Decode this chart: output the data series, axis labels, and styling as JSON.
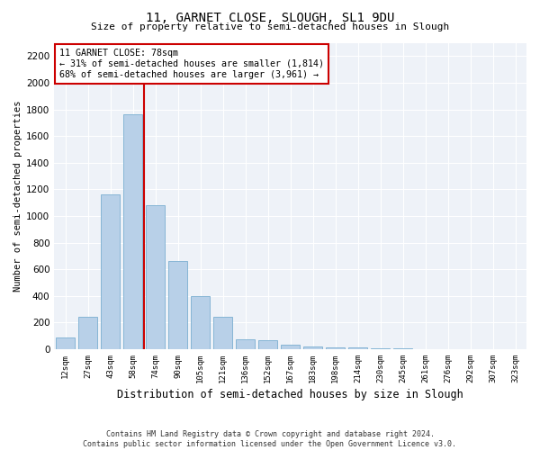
{
  "title": "11, GARNET CLOSE, SLOUGH, SL1 9DU",
  "subtitle": "Size of property relative to semi-detached houses in Slough",
  "xlabel": "Distribution of semi-detached houses by size in Slough",
  "ylabel": "Number of semi-detached properties",
  "categories": [
    "12sqm",
    "27sqm",
    "43sqm",
    "58sqm",
    "74sqm",
    "90sqm",
    "105sqm",
    "121sqm",
    "136sqm",
    "152sqm",
    "167sqm",
    "183sqm",
    "198sqm",
    "214sqm",
    "230sqm",
    "245sqm",
    "261sqm",
    "276sqm",
    "292sqm",
    "307sqm",
    "323sqm"
  ],
  "values": [
    90,
    240,
    1160,
    1760,
    1080,
    660,
    400,
    240,
    75,
    65,
    35,
    20,
    15,
    10,
    7,
    5,
    3,
    2,
    1,
    0,
    0
  ],
  "bar_color": "#b8d0e8",
  "bar_edge_color": "#7aaed0",
  "property_bin_index": 4,
  "property_sqm": 78,
  "pct_smaller": 31,
  "pct_larger": 68,
  "count_smaller": 1814,
  "count_larger": 3961,
  "annotation_box_facecolor": "#ffffff",
  "annotation_box_edgecolor": "#cc0000",
  "property_line_color": "#cc0000",
  "ylim": [
    0,
    2300
  ],
  "yticks": [
    0,
    200,
    400,
    600,
    800,
    1000,
    1200,
    1400,
    1600,
    1800,
    2000,
    2200
  ],
  "bg_color": "#eef2f8",
  "grid_color": "#ffffff",
  "footer_line1": "Contains HM Land Registry data © Crown copyright and database right 2024.",
  "footer_line2": "Contains public sector information licensed under the Open Government Licence v3.0."
}
